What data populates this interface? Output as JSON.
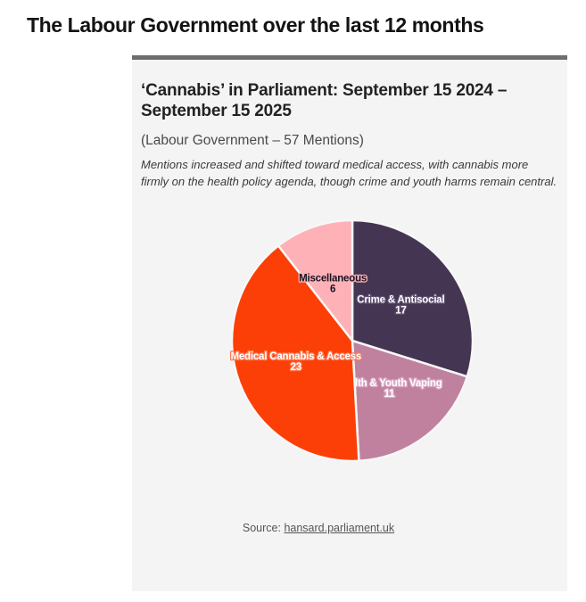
{
  "page": {
    "title": "The Labour Government over the last 12 months"
  },
  "card": {
    "title": "‘Cannabis’ in Parliament: September 15 2024 – September 15 2025",
    "subtitle": "(Labour Government – 57 Mentions)",
    "description": "Mentions increased and shifted toward medical access, with cannabis more firmly on the health policy agenda, though crime and youth harms remain central.",
    "source_prefix": "Source: ",
    "source_link": "hansard.parliament.uk"
  },
  "chart_data": {
    "type": "pie",
    "title": "‘Cannabis’ in Parliament: September 15 2024 – September 15 2025",
    "subtitle": "(Labour Government – 57 Mentions)",
    "total_mentions": 57,
    "start_angle_deg": 0,
    "direction": "clockwise",
    "legend": "none",
    "slice_border_color": "#f7f7f7",
    "slices": [
      {
        "label": "Crime & Antisocial",
        "value": 17,
        "color": "#443553",
        "label_color": "#ffffff",
        "halo_color": "#5e5070"
      },
      {
        "label": "Health & Youth Vaping",
        "value": 11,
        "color": "#c0819f",
        "label_color": "#ffffff",
        "halo_color": "#d8a8c2"
      },
      {
        "label": "Medical Cannabis & Access",
        "value": 23,
        "color": "#fb3f06",
        "label_color": "#ffffff",
        "halo_color": "#ff7a52"
      },
      {
        "label": "Miscellaneous",
        "value": 6,
        "color": "#ffb1b8",
        "label_color": "#17121f",
        "halo_color": "#ffb1b8"
      }
    ]
  }
}
